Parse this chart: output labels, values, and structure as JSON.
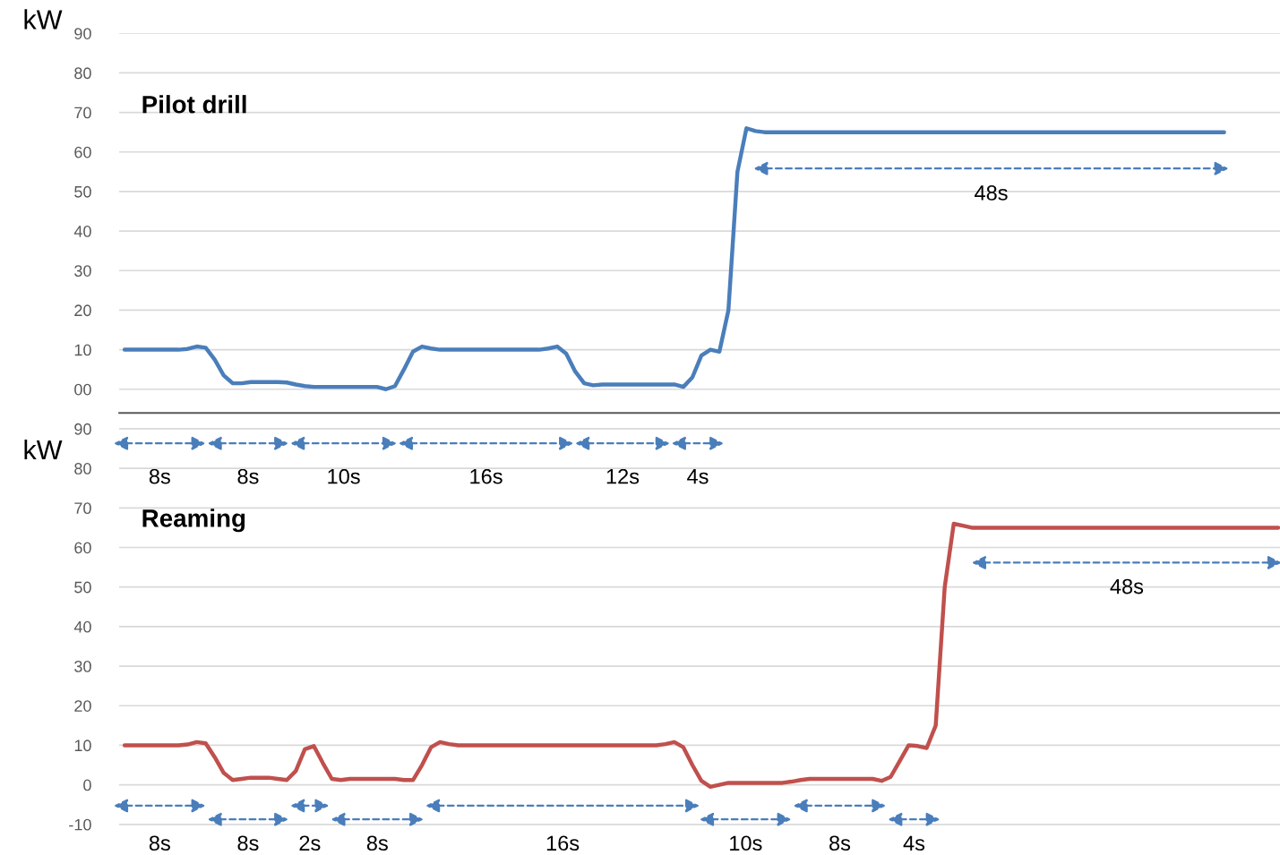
{
  "chart_data": [
    {
      "type": "line",
      "title": "Pilot drill",
      "ylabel": "kW",
      "categories": [
        null,
        null,
        null,
        null,
        null,
        null,
        null,
        null,
        null,
        null,
        null,
        null,
        null,
        null,
        null,
        null,
        null,
        null,
        null,
        null,
        null,
        null,
        null,
        null,
        null,
        null,
        null,
        null,
        null,
        null,
        null,
        null,
        null,
        null,
        null,
        null,
        null,
        null,
        null,
        null,
        null,
        null,
        null,
        null,
        null,
        null,
        null,
        null,
        null,
        null,
        null,
        null,
        null,
        null,
        null,
        null,
        null,
        null,
        null,
        null,
        null,
        null,
        null,
        null,
        null,
        null,
        null,
        null,
        null,
        null,
        null,
        null,
        null,
        null,
        null,
        null,
        null,
        null,
        null,
        null,
        null,
        null,
        null,
        null,
        null,
        null,
        null,
        null,
        null,
        null,
        null,
        null,
        null,
        null,
        null,
        null,
        null,
        null,
        null,
        null,
        null,
        null,
        null,
        null,
        null,
        null,
        null,
        null,
        null,
        null,
        null,
        null,
        null,
        null,
        null,
        null,
        null,
        null,
        null,
        null,
        null,
        null,
        null,
        null,
        null,
        null,
        null,
        null,
        null
      ],
      "series": [
        {
          "color": "#4a7ebb",
          "values": [
            10,
            10,
            10,
            10,
            10,
            10,
            10,
            10.2,
            10.8,
            10.5,
            7.5,
            3.5,
            1.5,
            1.5,
            1.8,
            1.8,
            1.8,
            1.8,
            1.7,
            1.2,
            0.8,
            0.6,
            0.6,
            0.6,
            0.6,
            0.6,
            0.6,
            0.6,
            0.6,
            0,
            0.8,
            5,
            9.5,
            10.8,
            10.3,
            10,
            10,
            10,
            10,
            10,
            10,
            10,
            10,
            10,
            10,
            10,
            10,
            10.3,
            10.8,
            9,
            4.5,
            1.5,
            1,
            1.2,
            1.2,
            1.2,
            1.2,
            1.2,
            1.2,
            1.2,
            1.2,
            1.2,
            0.6,
            3,
            8.5,
            10,
            9.5,
            20,
            55,
            66,
            65.3,
            65,
            65,
            65,
            65,
            65,
            65,
            65,
            65,
            65,
            65,
            65,
            65,
            65,
            65,
            65,
            65,
            65,
            65,
            65,
            65,
            65,
            65,
            65,
            65,
            65,
            65,
            65,
            65,
            65,
            65,
            65,
            65,
            65,
            65,
            65,
            65,
            65,
            65,
            65,
            65,
            65,
            65,
            65,
            65,
            65,
            65,
            65,
            65,
            65,
            65,
            65,
            65,
            null,
            null,
            null,
            null,
            null,
            null
          ]
        }
      ],
      "ylim": [
        -6,
        90
      ],
      "yticks": [
        {
          "value": 0,
          "label": "00"
        },
        10,
        20,
        30,
        40,
        50,
        60,
        70,
        80,
        90
      ],
      "grid": "y",
      "tick_labels": "y",
      "annotations": [
        "8s",
        "8s",
        "10s",
        "16s",
        "12s",
        "4s",
        "48s"
      ]
    },
    {
      "type": "line",
      "title": "Reaming",
      "ylabel": "kW",
      "categories": [
        null,
        null,
        null,
        null,
        null,
        null,
        null,
        null,
        null,
        null,
        null,
        null,
        null,
        null,
        null,
        null,
        null,
        null,
        null,
        null,
        null,
        null,
        null,
        null,
        null,
        null,
        null,
        null,
        null,
        null,
        null,
        null,
        null,
        null,
        null,
        null,
        null,
        null,
        null,
        null,
        null,
        null,
        null,
        null,
        null,
        null,
        null,
        null,
        null,
        null,
        null,
        null,
        null,
        null,
        null,
        null,
        null,
        null,
        null,
        null,
        null,
        null,
        null,
        null,
        null,
        null,
        null,
        null,
        null,
        null,
        null,
        null,
        null,
        null,
        null,
        null,
        null,
        null,
        null,
        null,
        null,
        null,
        null,
        null,
        null,
        null,
        null,
        null,
        null,
        null,
        null,
        null,
        null,
        null,
        null,
        null,
        null,
        null,
        null,
        null,
        null,
        null,
        null,
        null,
        null,
        null,
        null,
        null,
        null,
        null,
        null,
        null,
        null,
        null,
        null,
        null,
        null,
        null,
        null,
        null,
        null,
        null,
        null,
        null,
        null,
        null,
        null,
        null,
        null
      ],
      "series": [
        {
          "color": "#c0504d",
          "values": [
            10,
            10,
            10,
            10,
            10,
            10,
            10,
            10.2,
            10.8,
            10.5,
            7,
            3,
            1.2,
            1.5,
            1.8,
            1.8,
            1.8,
            1.5,
            1.2,
            3.5,
            9,
            9.8,
            5.5,
            1.5,
            1.2,
            1.5,
            1.5,
            1.5,
            1.5,
            1.5,
            1.5,
            1.2,
            1.2,
            5,
            9.5,
            10.8,
            10.3,
            10,
            10,
            10,
            10,
            10,
            10,
            10,
            10,
            10,
            10,
            10,
            10,
            10,
            10,
            10,
            10,
            10,
            10,
            10,
            10,
            10,
            10,
            10,
            10.3,
            10.8,
            9.5,
            5,
            1,
            -0.5,
            0,
            0.5,
            0.5,
            0.5,
            0.5,
            0.5,
            0.5,
            0.5,
            0.8,
            1.2,
            1.5,
            1.5,
            1.5,
            1.5,
            1.5,
            1.5,
            1.5,
            1.5,
            1,
            2,
            6,
            10,
            9.8,
            9.3,
            15,
            50,
            66,
            65.5,
            65,
            65,
            65,
            65,
            65,
            65,
            65,
            65,
            65,
            65,
            65,
            65,
            65,
            65,
            65,
            65,
            65,
            65,
            65,
            65,
            65,
            65,
            65,
            65,
            65,
            65,
            65,
            65,
            65,
            65,
            65,
            65,
            65,
            65,
            65
          ]
        }
      ],
      "ylim": [
        -10.5,
        94
      ],
      "yticks": [
        -10,
        0,
        10,
        20,
        30,
        40,
        50,
        60,
        70,
        80,
        90
      ],
      "grid": "y",
      "tick_labels": "y",
      "annotations": [
        "8s",
        "8s",
        "2s",
        "8s",
        "16s",
        "10s",
        "8s",
        "4s",
        "48s"
      ]
    }
  ]
}
